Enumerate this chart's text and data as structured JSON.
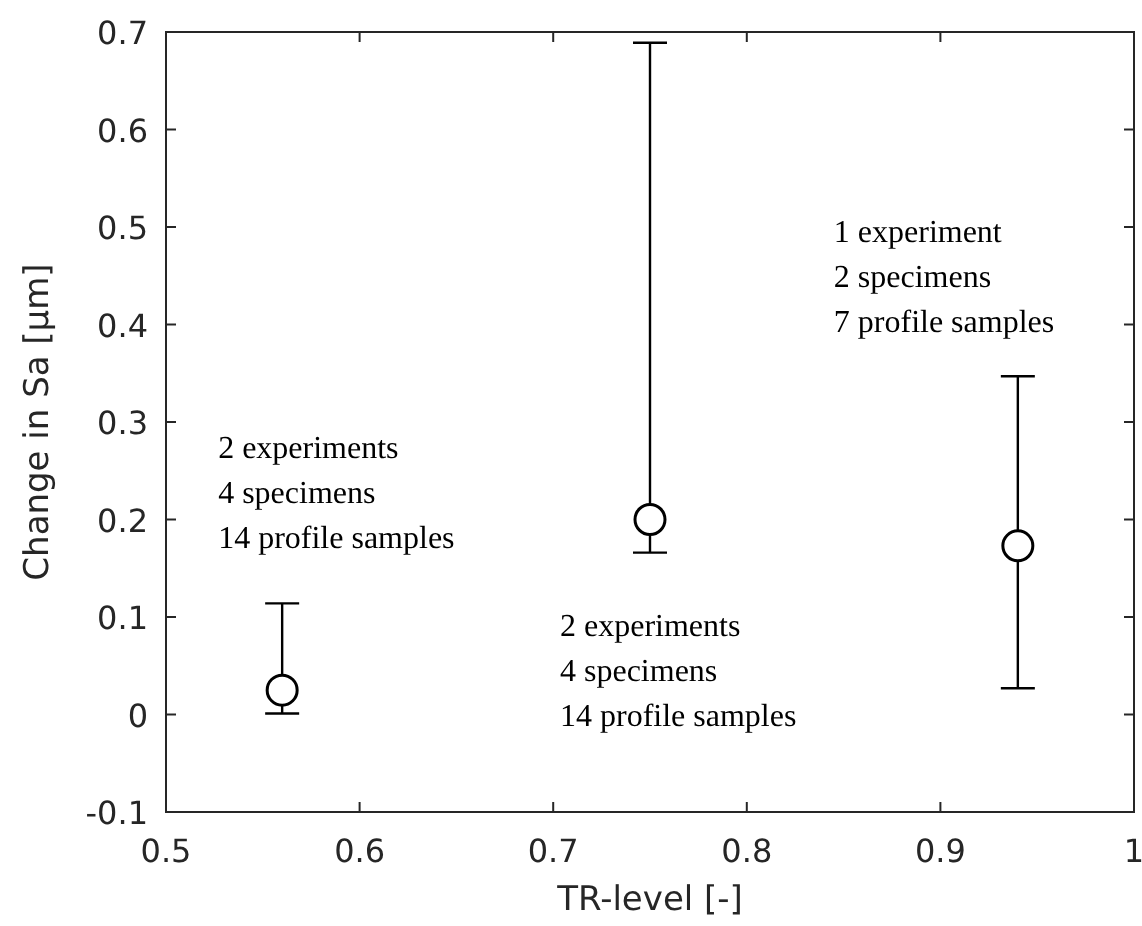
{
  "chart_data": {
    "type": "scatter",
    "xlabel": "TR-level [-]",
    "ylabel": "Change in Sa [µm]",
    "x": [
      0.56,
      0.75,
      0.94
    ],
    "values": [
      0.025,
      0.2,
      0.173
    ],
    "errors": [
      [
        0.001,
        0.114
      ],
      [
        0.166,
        0.689
      ],
      [
        0.027,
        0.347
      ]
    ],
    "color": "#000000",
    "marker": "circle",
    "grid": false,
    "xlim": [
      0.5,
      1
    ],
    "xticks": [
      0.5,
      0.6,
      0.7,
      0.8,
      0.9,
      1
    ],
    "ylim": [
      -0.1,
      0.7
    ],
    "yticks": [
      -0.1,
      0,
      0.1,
      0.2,
      0.3,
      0.4,
      0.5,
      0.6,
      0.7
    ],
    "annotations": [
      "2 experiments\n4 specimens\n14 profile samples",
      "2 experiments\n4 specimens\n14 profile samples",
      "1 experiment\n2 specimens\n7 profile samples"
    ]
  }
}
